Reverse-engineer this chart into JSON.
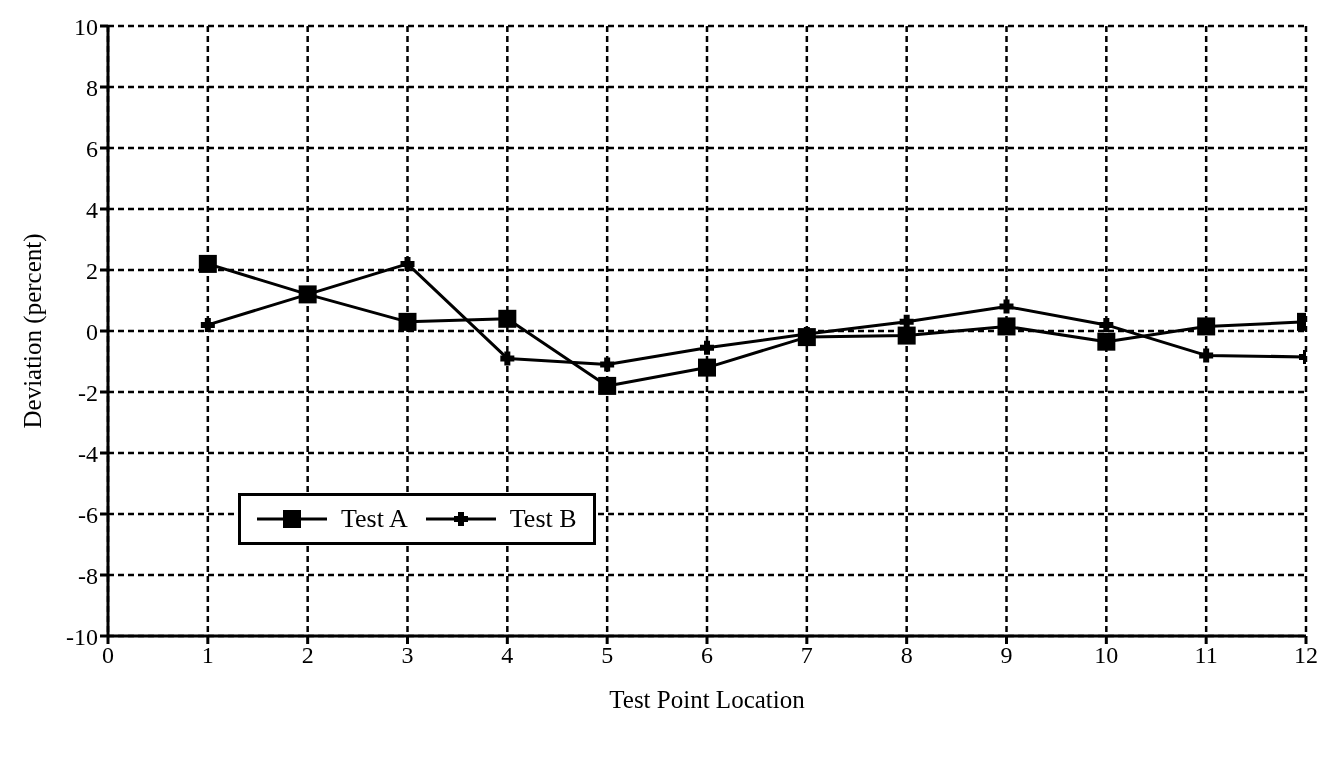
{
  "chart_data": {
    "type": "line",
    "xlabel": "Test Point Location",
    "ylabel": "Deviation (percent)",
    "x": [
      1,
      2,
      3,
      4,
      5,
      6,
      7,
      8,
      9,
      10,
      11,
      12
    ],
    "series": [
      {
        "name": "Test A",
        "color": "#000000",
        "marker": "square",
        "values": [
          2.2,
          1.2,
          0.3,
          0.4,
          -1.8,
          -1.2,
          -0.2,
          -0.15,
          0.15,
          -0.35,
          0.15,
          0.3
        ]
      },
      {
        "name": "Test B",
        "color": "#000000",
        "marker": "cross",
        "values": [
          0.2,
          1.2,
          2.2,
          -0.9,
          -1.1,
          -0.55,
          -0.1,
          0.3,
          0.8,
          0.2,
          -0.8,
          -0.85
        ]
      }
    ],
    "xlim": [
      0,
      12
    ],
    "xticks": [
      0,
      1,
      2,
      3,
      4,
      5,
      6,
      7,
      8,
      9,
      10,
      11,
      12
    ],
    "ylim": [
      -10,
      10
    ],
    "yticks": [
      -10,
      -8,
      -6,
      -4,
      -2,
      0,
      2,
      4,
      6,
      8,
      10
    ],
    "grid": true,
    "line_style": "solid",
    "legend": "bottom left"
  }
}
